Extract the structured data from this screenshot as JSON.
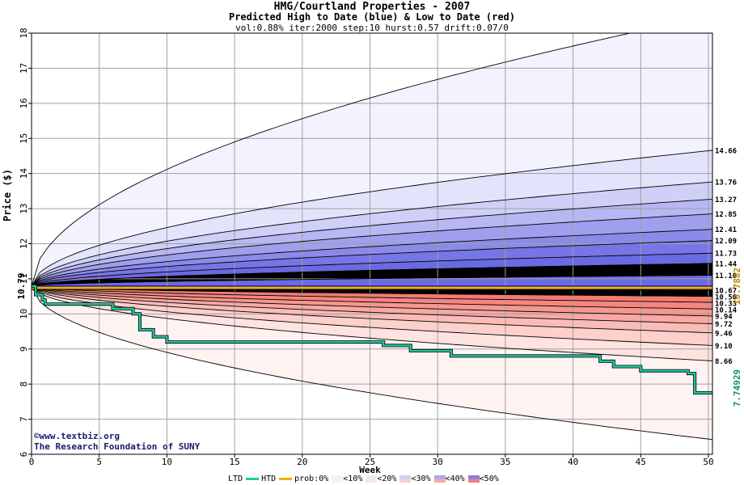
{
  "chart_data": {
    "type": "area",
    "title": "HMG/Courtland Properties - 2007",
    "subtitle": "Predicted High to Date (blue) &  Low to Date (red)",
    "params": "vol:0.88% iter:2000 step:10 hurst:0.57 drift:0.07/0",
    "xlabel": "Week",
    "ylabel": "Price ($)",
    "xlim": [
      0,
      50.3
    ],
    "ylim": [
      6,
      18
    ],
    "x_ticks": [
      "0",
      "5",
      "10",
      "15",
      "20",
      "25",
      "30",
      "35",
      "40",
      "45",
      "50"
    ],
    "y_ticks": [
      "6",
      "7",
      "8",
      "9",
      "10",
      "11",
      "12",
      "13",
      "14",
      "15",
      "16",
      "17",
      "18"
    ],
    "grid": true,
    "start_price": 10.79,
    "start_label": "10.79",
    "high_quantile_end_values": [
      14.66,
      13.76,
      13.27,
      12.85,
      12.41,
      12.09,
      11.73,
      11.44,
      11.1
    ],
    "high_quantile_end_labels": [
      "14.66",
      "13.76",
      "13.27",
      "12.85",
      "12.41",
      "12.09",
      "11.73",
      "11.44",
      "11.10"
    ],
    "low_quantile_end_values": [
      10.67,
      10.5,
      10.33,
      10.14,
      9.94,
      9.72,
      9.46,
      9.1,
      8.66
    ],
    "low_quantile_end_labels": [
      "10.67",
      "10.50",
      "10.33",
      "10.14",
      "9.94",
      "9.72",
      "9.46",
      "9.10",
      "8.66"
    ],
    "high_max_end": 18.5,
    "low_min_end": 6.42,
    "prob_line_value": 10.7882,
    "prob_line_label": "10.7882",
    "htd_line_value": 10.79,
    "ltd_series": {
      "name": "LTD",
      "x": [
        0,
        0.3,
        0.8,
        1,
        4,
        6,
        7.5,
        8,
        9,
        10,
        15,
        20,
        25,
        26,
        28,
        30,
        31,
        35,
        40,
        42,
        43,
        45,
        47,
        48.5,
        49,
        50.3
      ],
      "y": [
        10.79,
        10.55,
        10.4,
        10.28,
        10.28,
        10.15,
        10.0,
        9.55,
        9.35,
        9.2,
        9.2,
        9.2,
        9.2,
        9.1,
        8.95,
        8.95,
        8.8,
        8.8,
        8.8,
        8.65,
        8.5,
        8.38,
        8.38,
        8.3,
        7.75,
        7.75
      ]
    },
    "ltd_end_label": "7.74929",
    "legend": {
      "ltd": "LTD",
      "htd": "HTD",
      "prob": "prob:0%",
      "bands": [
        "<10%",
        "<20%",
        "<30%",
        "<40%",
        "<50%"
      ]
    },
    "colors": {
      "high_bands": [
        "#f3f3ff",
        "#e3e3fc",
        "#cfcff8",
        "#b7b7f3",
        "#9f9fed",
        "#8a8ae8",
        "#7676e4",
        "#6a6ae2"
      ],
      "low_bands": [
        "#fff3f1",
        "#ffe3e0",
        "#fdd0cc",
        "#fbbcb7",
        "#f9a8a3",
        "#f79690",
        "#f5867f",
        "#f47a73"
      ],
      "ltd_line": "#20c8a0",
      "htd_line": "#1010a0",
      "prob_line": "#f0b000",
      "prob_label": "#b8860b",
      "ltd_label": "#109060"
    }
  },
  "credit": {
    "line1": "©www.textbiz.org",
    "line2": "The Research Foundation of SUNY"
  }
}
